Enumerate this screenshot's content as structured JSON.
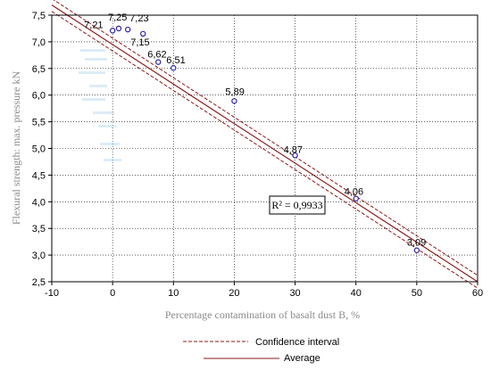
{
  "chart_data": {
    "type": "scatter",
    "xlabel": "Percentage contamination of basalt dust B, %",
    "ylabel": "Flexural strength: max. pressure kN",
    "xlim": [
      -10,
      60
    ],
    "ylim": [
      2.5,
      7.5
    ],
    "xticks": [
      "-10",
      "0",
      "10",
      "20",
      "30",
      "40",
      "50",
      "60"
    ],
    "yticks": [
      "2,5",
      "3,0",
      "3,5",
      "4,0",
      "4,5",
      "5,0",
      "5,5",
      "6,0",
      "6,5",
      "7,0",
      "7,5"
    ],
    "grid": true,
    "points": [
      {
        "x": 0,
        "y": 7.21,
        "label": "7,21"
      },
      {
        "x": 1,
        "y": 7.25,
        "label": "7,25"
      },
      {
        "x": 2.5,
        "y": 7.23,
        "label": "7,23"
      },
      {
        "x": 5,
        "y": 7.15,
        "label": "7,15"
      },
      {
        "x": 7.5,
        "y": 6.62,
        "label": "6,62"
      },
      {
        "x": 10,
        "y": 6.51,
        "label": "6,51"
      },
      {
        "x": 20,
        "y": 5.89,
        "label": "5,89"
      },
      {
        "x": 30,
        "y": 4.87,
        "label": "4,87"
      },
      {
        "x": 40,
        "y": 4.06,
        "label": "4,06"
      },
      {
        "x": 50,
        "y": 3.09,
        "label": "3,09"
      }
    ],
    "fit": {
      "x0": -10,
      "y0": 7.69,
      "x1": 60,
      "y1": 2.5,
      "band": 0.12
    },
    "annotation": {
      "r2": "R² = 0,9933"
    },
    "legend": [
      {
        "name": "Confidence interval",
        "style": "dashed",
        "color": "#8b1a1a"
      },
      {
        "name": "Average",
        "style": "solid",
        "color": "#8b1a1a"
      }
    ],
    "colors": {
      "points": "#2a1fa8",
      "line": "#8b1a1a",
      "grid": "#000000"
    }
  }
}
